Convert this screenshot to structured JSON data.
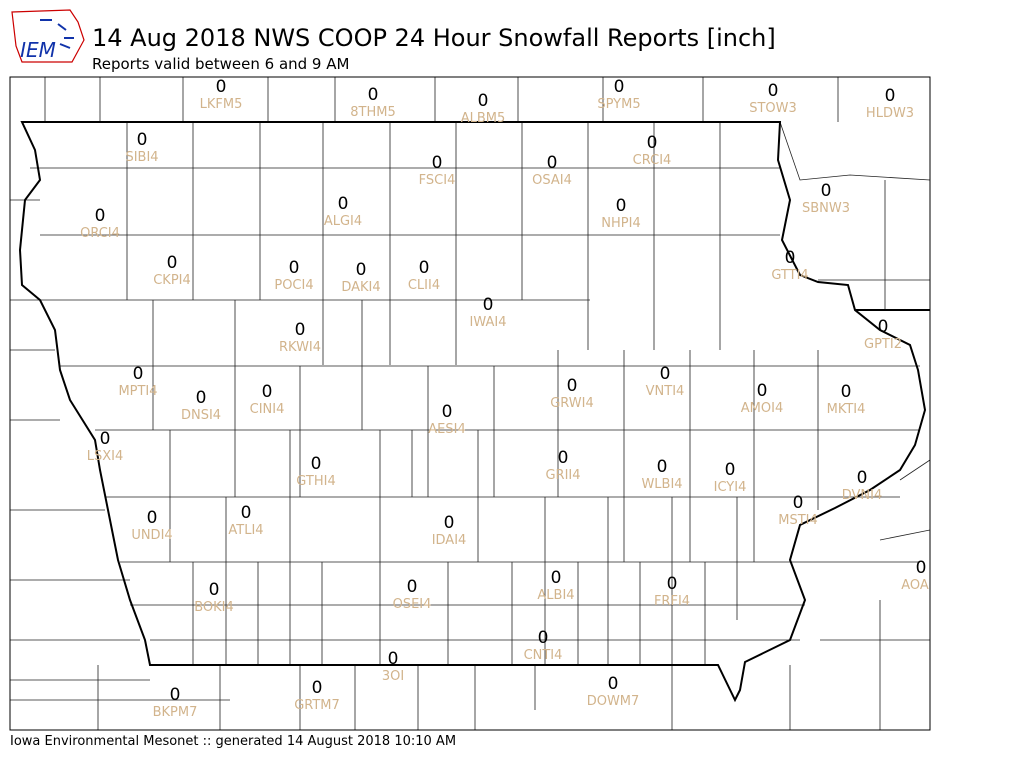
{
  "header": {
    "logo": "IEM",
    "title": "14 Aug 2018 NWS COOP 24 Hour Snowfall Reports [inch]",
    "subtitle": "Reports valid between 6 and 9 AM"
  },
  "stations": [
    {
      "id": "LKFM5",
      "value": 0
    },
    {
      "id": "8THM5",
      "value": 0
    },
    {
      "id": "ALBM5",
      "value": 0
    },
    {
      "id": "SPYM5",
      "value": 0
    },
    {
      "id": "STOW3",
      "value": 0
    },
    {
      "id": "HLDW3",
      "value": 0
    },
    {
      "id": "SIBI4",
      "value": 0
    },
    {
      "id": "FSCI4",
      "value": 0
    },
    {
      "id": "OSAI4",
      "value": 0
    },
    {
      "id": "CRCI4",
      "value": 0
    },
    {
      "id": "SBNW3",
      "value": 0
    },
    {
      "id": "ORCI4",
      "value": 0
    },
    {
      "id": "ALGI4",
      "value": 0
    },
    {
      "id": "NHPI4",
      "value": 0
    },
    {
      "id": "GTTI4",
      "value": 0
    },
    {
      "id": "CKPI4",
      "value": 0
    },
    {
      "id": "POCI4",
      "value": 0
    },
    {
      "id": "DAKI4",
      "value": 0
    },
    {
      "id": "CLII4",
      "value": 0
    },
    {
      "id": "IWAI4",
      "value": 0
    },
    {
      "id": "RKWI4",
      "value": 0
    },
    {
      "id": "GPTI2",
      "value": 0
    },
    {
      "id": "MPTI4",
      "value": 0
    },
    {
      "id": "DNSI4",
      "value": 0
    },
    {
      "id": "CINI4",
      "value": 0
    },
    {
      "id": "AESI4",
      "value": 0
    },
    {
      "id": "GRWI4",
      "value": 0
    },
    {
      "id": "VNTI4",
      "value": 0
    },
    {
      "id": "AMOI4",
      "value": 0
    },
    {
      "id": "MKTI4",
      "value": 0
    },
    {
      "id": "LSXI4",
      "value": 0
    },
    {
      "id": "GTHI4",
      "value": 0
    },
    {
      "id": "GRII4",
      "value": 0
    },
    {
      "id": "WLBI4",
      "value": 0
    },
    {
      "id": "ICYI4",
      "value": 0
    },
    {
      "id": "DVNI4",
      "value": 0
    },
    {
      "id": "MSTI4",
      "value": 0
    },
    {
      "id": "UNDI4",
      "value": 0
    },
    {
      "id": "ATLI4",
      "value": 0
    },
    {
      "id": "IDAI4",
      "value": 0
    },
    {
      "id": "AOA",
      "value": 0
    },
    {
      "id": "BOKI4",
      "value": 0
    },
    {
      "id": "OSEI4",
      "value": 0
    },
    {
      "id": "ALBI4",
      "value": 0
    },
    {
      "id": "FRFI4",
      "value": 0
    },
    {
      "id": "CNTI4",
      "value": 0
    },
    {
      "id": "3OI",
      "value": 0
    },
    {
      "id": "DOWM7",
      "value": 0
    },
    {
      "id": "BKPM7",
      "value": 0
    },
    {
      "id": "GRTM7",
      "value": 0
    }
  ],
  "footer": "Iowa Environmental Mesonet :: generated 14 August 2018 10:10 AM"
}
